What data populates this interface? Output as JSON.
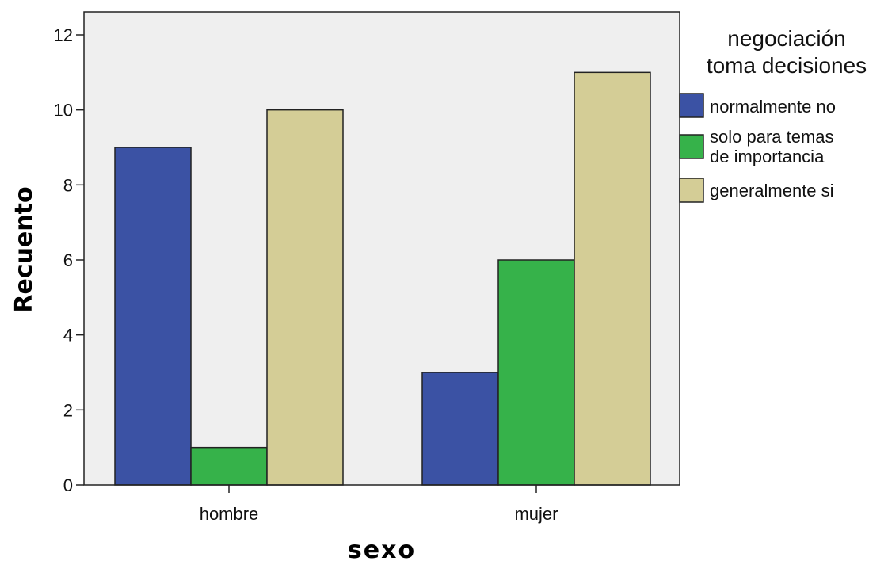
{
  "chart_data": {
    "type": "bar",
    "xlabel": "sexo",
    "ylabel": "Recuento",
    "categories": [
      "hombre",
      "mujer"
    ],
    "ylim": [
      0,
      12
    ],
    "yticks": [
      0,
      2,
      4,
      6,
      8,
      10,
      12
    ],
    "grid": false,
    "legend_position": "right",
    "legend_title_lines": [
      "negociación",
      "toma decisiones"
    ],
    "series": [
      {
        "name": "normalmente no",
        "color": "#3b52a4",
        "values": [
          9,
          3
        ]
      },
      {
        "name_lines": [
          "solo para temas",
          "de importancia"
        ],
        "color": "#36b24a",
        "values": [
          1,
          6
        ]
      },
      {
        "name": "generalmente si",
        "color": "#d4cd96",
        "values": [
          10,
          11
        ]
      }
    ],
    "plot_background": "#efefef"
  }
}
